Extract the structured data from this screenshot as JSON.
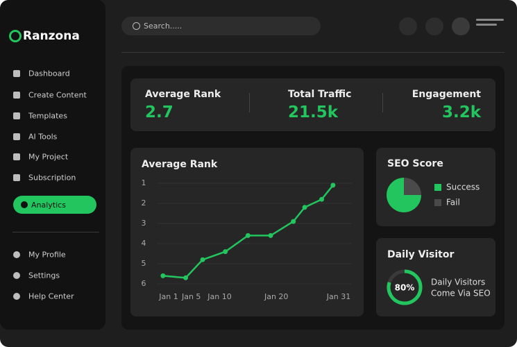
{
  "sidebar": {
    "brand": "Ranzona",
    "menu": [
      "Dashboard",
      "Create Content",
      "Templates",
      "AI Tools",
      "My Project",
      "Subscription"
    ],
    "active_item": "Analytics",
    "footer_menu": [
      "My Profile",
      "Settings",
      "Help Center"
    ]
  },
  "search": {
    "placeholder": "Search....."
  },
  "stats": [
    {
      "label": "Average Rank",
      "value": "2.7"
    },
    {
      "label": "Total Traffic",
      "value": "21.5k"
    },
    {
      "label": "Engagement",
      "value": "3.2k"
    }
  ],
  "charts": [
    {
      "type": "line",
      "title": "Average Rank",
      "x": [
        0,
        4,
        7,
        11,
        15,
        19,
        23,
        25,
        28,
        30
      ],
      "xlim": [
        -1,
        32
      ],
      "xticks": [
        {
          "value": 1,
          "label": "Jan 1"
        },
        {
          "value": 5,
          "label": "Jan 5"
        },
        {
          "value": 10,
          "label": "Jan 10"
        },
        {
          "value": 20,
          "label": "Jan 20"
        },
        {
          "value": 31,
          "label": "Jan 31"
        }
      ],
      "values": [
        5.6,
        5.7,
        4.8,
        4.4,
        3.6,
        3.6,
        2.9,
        2.2,
        1.8,
        1.1
      ],
      "color": "#22c55e",
      "ylim": [
        1,
        6
      ],
      "yticks": [
        1,
        2,
        3,
        4,
        5,
        6
      ],
      "y_reversed": true,
      "grid": true
    },
    {
      "type": "pie",
      "title": "SEO Score",
      "categories": [
        "Success",
        "Fail"
      ],
      "values": [
        75,
        25
      ],
      "colors": [
        "#22c55e",
        "#4a4a4a"
      ]
    },
    {
      "type": "donut",
      "title": "Daily Visitor",
      "values": [
        80
      ],
      "value_labels": [
        "80%"
      ],
      "color": "#22c55e",
      "caption": [
        "Daily Visitors",
        "Come Via SEO"
      ]
    }
  ]
}
